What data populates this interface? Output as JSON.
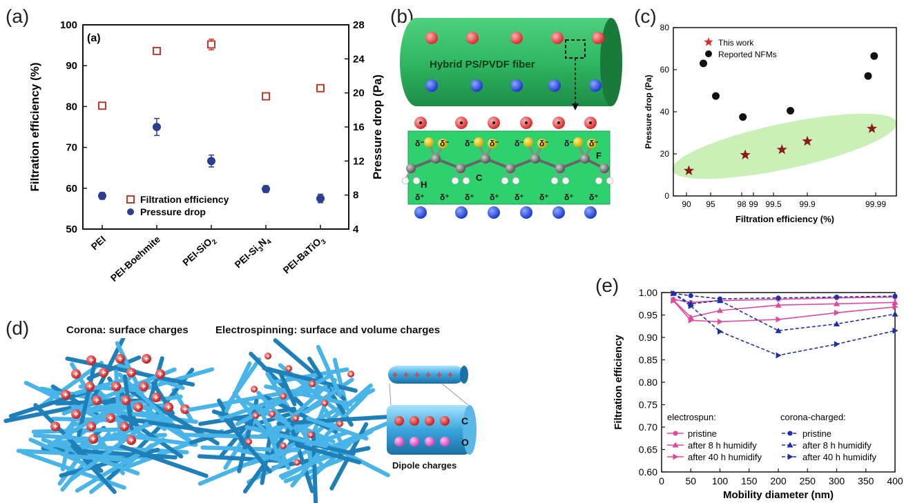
{
  "panel_letters": {
    "a": "(a)",
    "b": "(b)",
    "c": "(c)",
    "d": "(d)",
    "e": "(e)"
  },
  "chart_data": [
    {
      "panel": "(a)",
      "type": "scatter",
      "inner_label": "(a)",
      "categories": [
        "PEI",
        "PEI-Boehmite",
        "PEI-SiO2",
        "PEI-Si3N4",
        "PEI-BaTiO3"
      ],
      "category_display": [
        {
          "base": "PEI",
          "sub": ""
        },
        {
          "base": "PEI-Boehmite",
          "sub": ""
        },
        {
          "base": "PEI-SiO",
          "sub": "2"
        },
        {
          "base": "PEI-Si",
          "sub": "3",
          "base2": "N",
          "sub2": "4"
        },
        {
          "base": "PEI-BaTiO",
          "sub": "3"
        }
      ],
      "ylabel": "Filtration efficiency (%)",
      "y2label": "Pressure drop (Pa)",
      "ylim": [
        50,
        100
      ],
      "y2lim": [
        4,
        28
      ],
      "yticks": [
        50,
        60,
        70,
        80,
        90,
        100
      ],
      "y2ticks": [
        4,
        8,
        12,
        16,
        20,
        24,
        28
      ],
      "series": [
        {
          "name": "Filtration efficiency",
          "axis": "left",
          "marker": "open-square",
          "color": "#c0392b",
          "values": [
            80.2,
            93.6,
            95.2,
            82.5,
            84.5
          ],
          "errors": [
            0.8,
            0.7,
            1.3,
            0.5,
            0.4
          ]
        },
        {
          "name": "Pressure drop",
          "axis": "right",
          "marker": "filled-circle",
          "color": "#2c3e8f",
          "values": [
            7.9,
            16.0,
            12.0,
            8.7,
            7.6
          ],
          "errors": [
            0.4,
            1.0,
            0.7,
            0.4,
            0.5
          ]
        }
      ]
    },
    {
      "panel": "(c)",
      "type": "scatter",
      "xlabel": "Filtration efficiency (%)",
      "ylabel": "Pressure drop (Pa)",
      "xtick_labels": [
        "90",
        "95",
        "98",
        "99",
        "99.5",
        "99.9",
        "99.99"
      ],
      "ylim": [
        0,
        80
      ],
      "yticks": [
        0,
        20,
        40,
        60,
        80
      ],
      "series": [
        {
          "name": "This work",
          "marker": "star",
          "color": "#8b1a1a",
          "points": [
            [
              90.5,
              12
            ],
            [
              98.3,
              19.5
            ],
            [
              99.6,
              22
            ],
            [
              99.9,
              26
            ],
            [
              99.985,
              32
            ]
          ]
        },
        {
          "name": "Reported NFMs",
          "marker": "filled-circle",
          "color": "#111111",
          "points": [
            [
              93.5,
              63
            ],
            [
              95.5,
              47.5
            ],
            [
              98.1,
              37.5
            ],
            [
              99.7,
              40.5
            ],
            [
              99.98,
              57
            ],
            [
              99.988,
              66.5
            ]
          ]
        }
      ]
    },
    {
      "panel": "(e)",
      "type": "line",
      "xlabel": "Mobility diameter (nm)",
      "ylabel": "Filtration efficiency",
      "xlim": [
        0,
        400
      ],
      "ylim": [
        0.6,
        1.0
      ],
      "xticks": [
        0,
        50,
        100,
        150,
        200,
        250,
        300,
        350,
        400
      ],
      "yticks": [
        "0.60",
        "0.65",
        "0.70",
        "0.75",
        "0.80",
        "0.85",
        "0.90",
        "0.95",
        "1.00"
      ],
      "x": [
        20,
        50,
        100,
        200,
        300,
        400
      ],
      "legend_headers": [
        "electrospun:",
        "corona-charged:"
      ],
      "series": [
        {
          "name": "pristine",
          "group": "electrospun",
          "style": "solid",
          "marker": "circle",
          "color": "#e04a9b",
          "values": [
            0.985,
            0.978,
            0.982,
            0.985,
            0.988,
            0.99
          ]
        },
        {
          "name": "after 8 h humidify",
          "group": "electrospun",
          "style": "solid",
          "marker": "triangle",
          "color": "#e04a9b",
          "values": [
            0.983,
            0.945,
            0.96,
            0.972,
            0.975,
            0.978
          ]
        },
        {
          "name": "after 40 h humidify",
          "group": "electrospun",
          "style": "solid",
          "marker": "triangle-right",
          "color": "#e04a9b",
          "values": [
            0.982,
            0.938,
            0.935,
            0.94,
            0.955,
            0.968
          ]
        },
        {
          "name": "pristine",
          "group": "corona-charged",
          "style": "dashed",
          "marker": "circle",
          "color": "#1f2fa8",
          "values": [
            0.998,
            0.993,
            0.986,
            0.988,
            0.99,
            0.992
          ]
        },
        {
          "name": "after 8 h humidify",
          "group": "corona-charged",
          "style": "dashed",
          "marker": "triangle",
          "color": "#1f2fa8",
          "values": [
            0.998,
            0.975,
            0.982,
            0.915,
            0.93,
            0.952
          ]
        },
        {
          "name": "after 40 h humidify",
          "group": "corona-charged",
          "style": "dashed",
          "marker": "triangle-right",
          "color": "#1f2fa8",
          "values": [
            0.998,
            0.97,
            0.913,
            0.86,
            0.885,
            0.915
          ]
        }
      ]
    }
  ],
  "diagram_b": {
    "fiber_label": "Hybrid PS/PVDF fiber",
    "delta_minus": "δ⁻",
    "delta_plus": "δ⁺",
    "atom_labels": {
      "h": "H",
      "c": "C",
      "f": "F"
    },
    "colors": {
      "fiber": "#27ae60",
      "box": "#2ecc71",
      "positive": "#e74c3c",
      "negative": "#2b4fd6",
      "fluorine": "#f1c40f"
    }
  },
  "diagram_d": {
    "corona_title": "Corona: surface charges",
    "electrospinning_title": "Electrospinning: surface and volume charges",
    "dipole_label": "Dipole charges",
    "plus": "+",
    "c_label": "C",
    "o_label": "O",
    "colors": {
      "fiber": "#3aa6dc",
      "charge": "#e23b3b"
    }
  }
}
